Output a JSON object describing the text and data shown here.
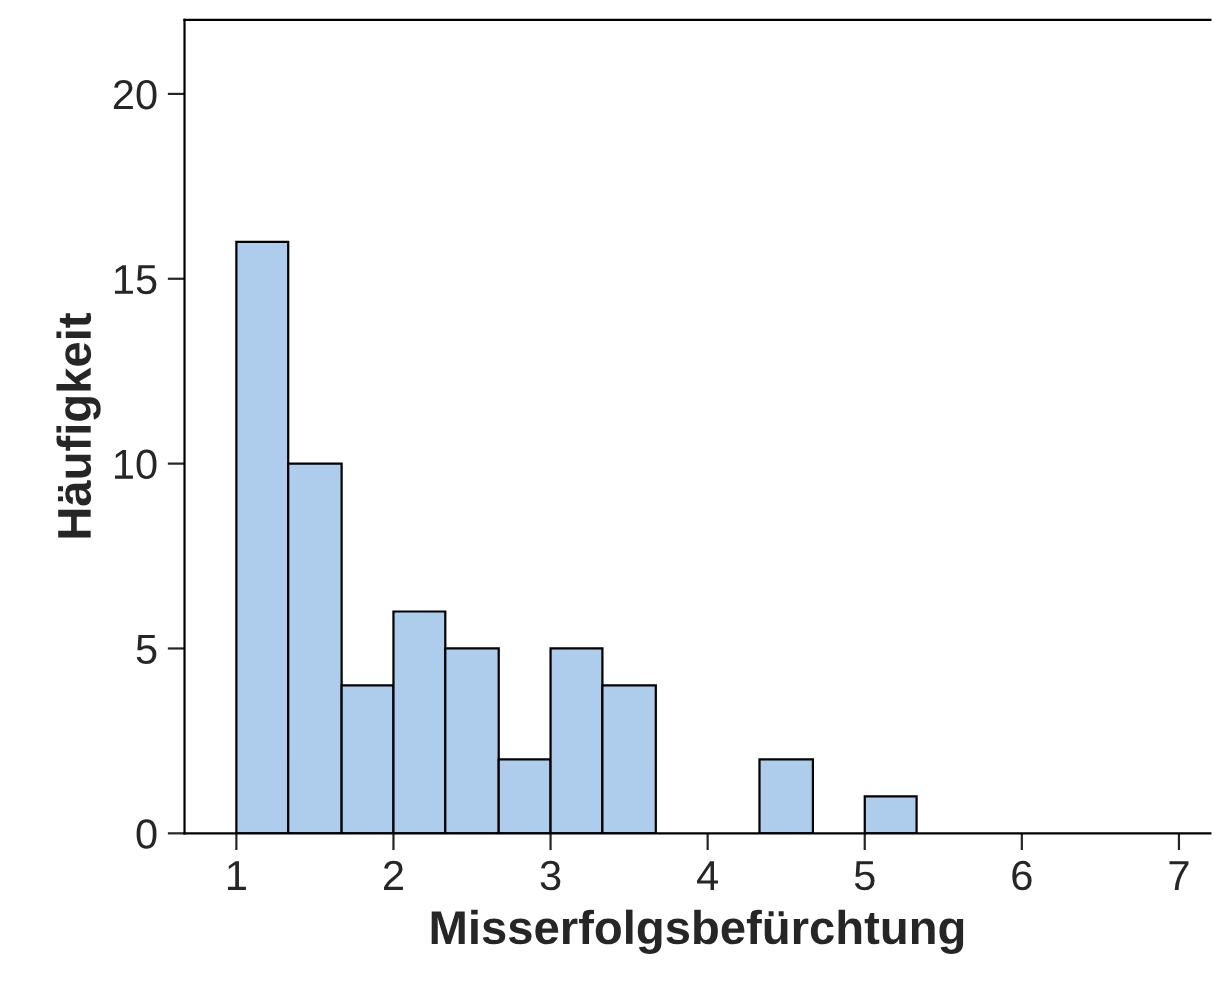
{
  "chart_data": {
    "type": "histogram",
    "xlabel": "Misserfolgsbefürchtung",
    "ylabel": "Häufigkeit",
    "bins": [
      1,
      1.33,
      1.67,
      2,
      2.33,
      2.67,
      3,
      3.33,
      3.67,
      4.33,
      4.67,
      5,
      5.33
    ],
    "values": [
      16,
      10,
      4,
      6,
      5,
      2,
      5,
      4,
      0,
      2,
      0,
      1
    ],
    "color": "#aecdec",
    "xlim": [
      0.67,
      7.2
    ],
    "xticks": [
      1,
      2,
      3,
      4,
      5,
      6,
      7
    ],
    "ylim": [
      0,
      22
    ],
    "yticks": [
      0,
      5,
      10,
      15,
      20
    ],
    "grid": false
  }
}
